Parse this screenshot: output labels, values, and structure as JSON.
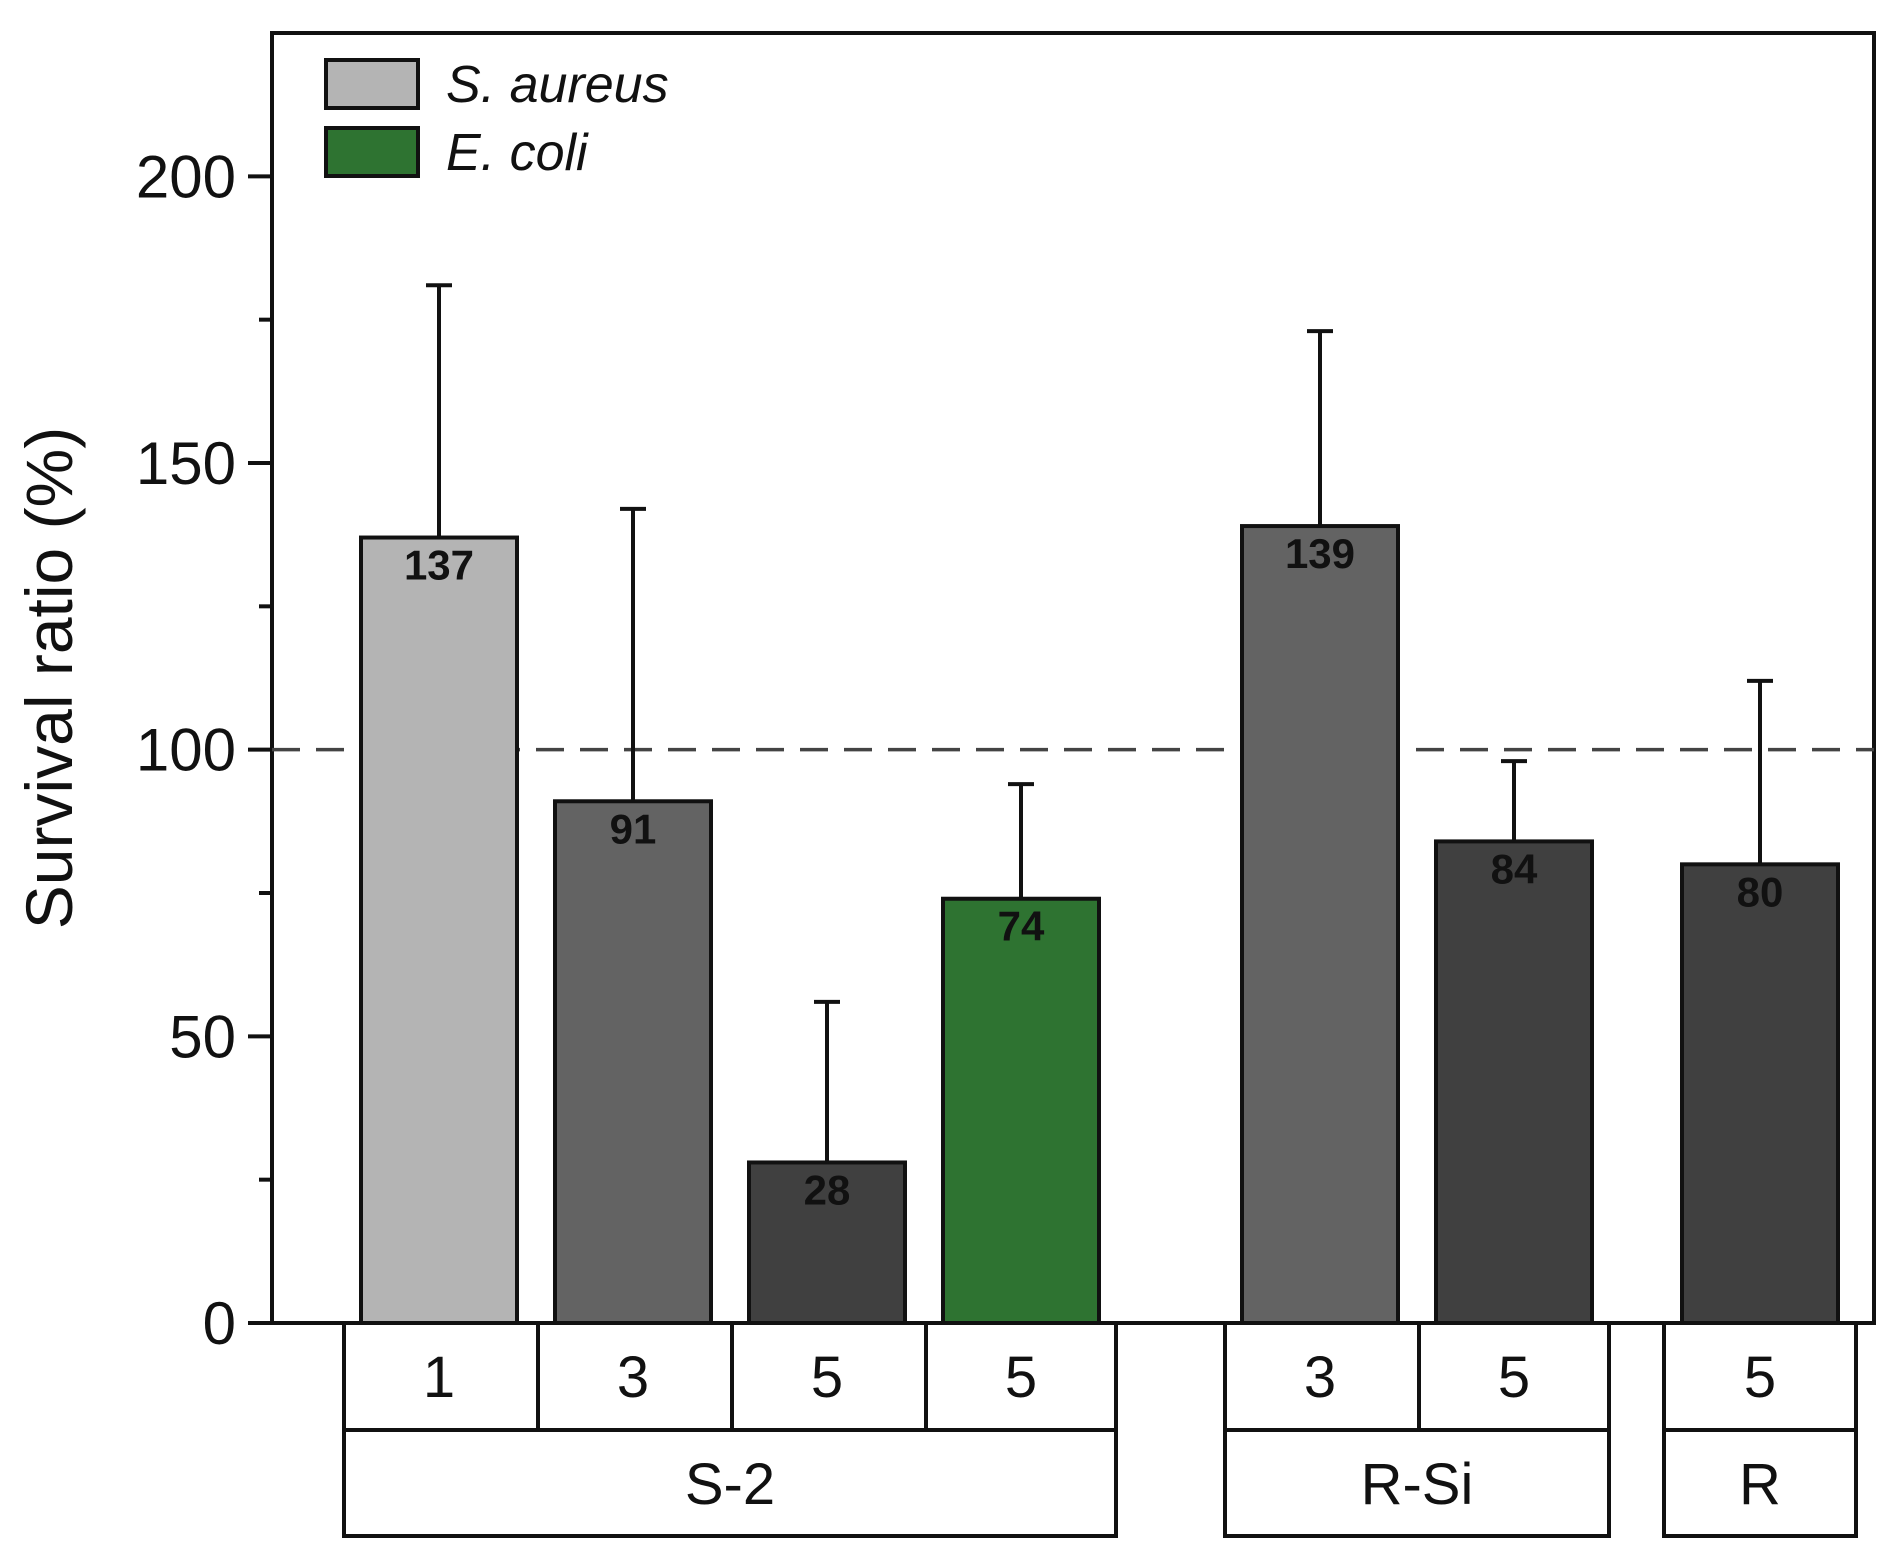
{
  "chart_data": {
    "type": "bar",
    "title": "",
    "xlabel": "",
    "ylabel": "Survival ratio (%)",
    "ylim": [
      0,
      225
    ],
    "yticks": [
      0,
      50,
      100,
      150,
      200
    ],
    "reference_line": 100,
    "legend": [
      {
        "name": "S. aureus",
        "color": "#b4b4b4"
      },
      {
        "name": "E. coli",
        "color": "#2e7331"
      }
    ],
    "bars": [
      {
        "group": "S-2",
        "category": "1",
        "value": 137,
        "label": "137",
        "error": 44,
        "color": "#b4b4b4",
        "organism": "S. aureus"
      },
      {
        "group": "S-2",
        "category": "3",
        "value": 91,
        "label": "91",
        "error": 51,
        "color": "#636363",
        "organism": "S. aureus"
      },
      {
        "group": "S-2",
        "category": "5",
        "value": 28,
        "label": "28",
        "error": 28,
        "color": "#404040",
        "organism": "S. aureus"
      },
      {
        "group": "S-2",
        "category": "5",
        "value": 74,
        "label": "74",
        "error": 20,
        "color": "#2e7331",
        "organism": "E. coli"
      },
      {
        "group": "R-Si",
        "category": "3",
        "value": 139,
        "label": "139",
        "error": 34,
        "color": "#636363",
        "organism": "S. aureus"
      },
      {
        "group": "R-Si",
        "category": "5",
        "value": 84,
        "label": "84",
        "error": 14,
        "color": "#404040",
        "organism": "S. aureus"
      },
      {
        "group": "R",
        "category": "5",
        "value": 80,
        "label": "80",
        "error": 32,
        "color": "#404040",
        "organism": "S. aureus"
      }
    ],
    "groups": [
      {
        "name": "S-2",
        "bar_indices": [
          0,
          1,
          2,
          3
        ]
      },
      {
        "name": "R-Si",
        "bar_indices": [
          4,
          5
        ]
      },
      {
        "name": "R",
        "bar_indices": [
          6
        ]
      }
    ]
  }
}
